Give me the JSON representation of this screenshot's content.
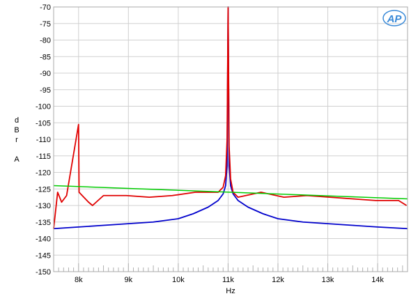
{
  "chart_data": {
    "type": "line",
    "title": "",
    "xlabel": "Hz",
    "ylabel_lines": [
      "d",
      "B",
      "r",
      "",
      "A"
    ],
    "xlim": [
      7500,
      14600
    ],
    "ylim": [
      -150,
      -70
    ],
    "yticks": [
      -70,
      -75,
      -80,
      -85,
      -90,
      -95,
      -100,
      -105,
      -110,
      -115,
      -120,
      -125,
      -130,
      -135,
      -140,
      -145,
      -150
    ],
    "xticks": [
      {
        "value": 8000,
        "label": "8k"
      },
      {
        "value": 9000,
        "label": "9k"
      },
      {
        "value": 10000,
        "label": "10k"
      },
      {
        "value": 11000,
        "label": "11k"
      },
      {
        "value": 12000,
        "label": "12k"
      },
      {
        "value": 13000,
        "label": "13k"
      },
      {
        "value": 14000,
        "label": "14k"
      }
    ],
    "grid": true,
    "logo": "AP",
    "series": [
      {
        "color": "#0000cc",
        "x": [
          7500,
          8000,
          8500,
          9000,
          9500,
          10000,
          10300,
          10600,
          10800,
          10900,
          10950,
          10980,
          11000,
          11020,
          11050,
          11100,
          11200,
          11400,
          11700,
          12000,
          12500,
          13000,
          13500,
          14000,
          14600
        ],
        "values": [
          -137,
          -136.5,
          -136,
          -135.5,
          -135,
          -134,
          -132.5,
          -130.5,
          -128.5,
          -126.5,
          -124,
          -118,
          -70,
          -118,
          -124,
          -126.5,
          -128.5,
          -130.5,
          -132.5,
          -134,
          -135,
          -135.5,
          -136,
          -136.5,
          -137
        ]
      },
      {
        "color": "#e00000",
        "x": [
          7500,
          7580,
          7660,
          7760,
          8000,
          8010,
          8200,
          8280,
          8500,
          8960,
          9420,
          9880,
          10340,
          10800,
          10900,
          10950,
          10980,
          11000,
          11020,
          11050,
          11100,
          11200,
          11660,
          12120,
          12580,
          13040,
          13500,
          13960,
          14420,
          14580
        ],
        "values": [
          -137,
          -126,
          -129,
          -127,
          -105.5,
          -126,
          -129,
          -130,
          -127,
          -127,
          -127.5,
          -127,
          -126,
          -126,
          -124.5,
          -121,
          -110,
          -70,
          -112,
          -122,
          -126,
          -127.5,
          -126,
          -127.5,
          -127,
          -127.5,
          -128,
          -128.5,
          -128.5,
          -130
        ]
      },
      {
        "color": "#00cc00",
        "x": [
          7500,
          14600
        ],
        "values": [
          -124,
          -128
        ]
      }
    ]
  }
}
